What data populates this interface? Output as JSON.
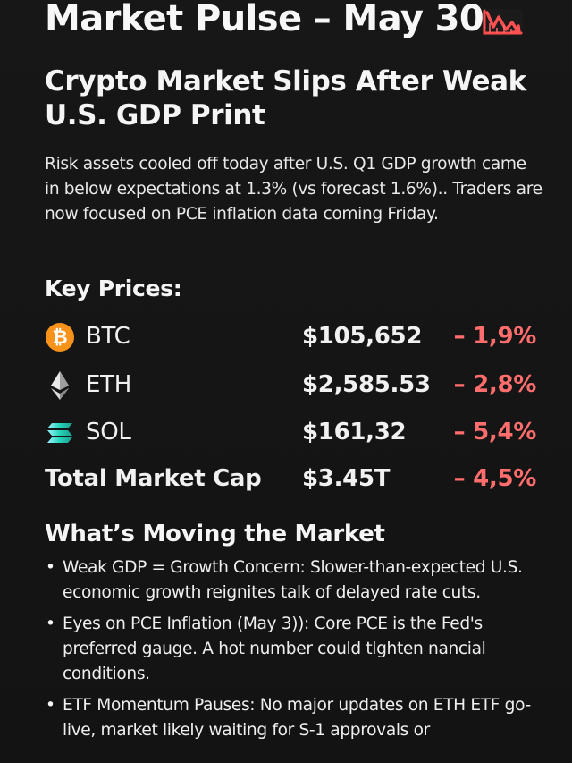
{
  "header": {
    "title": "Market Pulse – May 30",
    "chart_icon": "chart-decreasing-icon"
  },
  "headline": {
    "title": "Crypto Market Slips After Weak U.S. GDP Print"
  },
  "intro": {
    "text": "Risk assets cooled off today after U.S. Q1 GDP growth came in below expectations at 1.3% (vs forecast 1.6%).. Traders are now focused on PCE inflation data coming Friday."
  },
  "key_prices": {
    "title": "Key Prices:",
    "items": [
      {
        "name": "BTC",
        "price": "$105,652",
        "change": "– 1,9%",
        "icon": "bitcoin-icon",
        "icon_color": "#F7931A"
      },
      {
        "name": "ETH",
        "price": "$2,585.53",
        "change": "– 2,8%",
        "icon": "ethereum-icon",
        "icon_color": "#D8D8D8"
      },
      {
        "name": "SOL",
        "price": "$161,32",
        "change": "– 5,4%",
        "icon": "solana-icon",
        "icon_color": "#24D4B8"
      },
      {
        "name": "Total Market Cap",
        "price": "$3.45T",
        "change": "– 4,5%"
      }
    ],
    "negative_color": "#FF6D6D"
  },
  "moving_market": {
    "title": "What’s Moving the Market",
    "bullets": [
      "Weak GDP = Growth Concern: Slower-than-expected U.S. economic growth reignites talk of delayed rate cuts.",
      "Eyes on PCE Inflation (May 3)): Core PCE is the Fed's preferred gauge. A hot number could tlghten nancial conditions.",
      "ETF Momentum Pauses: No major updates on ETH ETF go-live, market likely waiting for S-1 approvals or"
    ]
  }
}
